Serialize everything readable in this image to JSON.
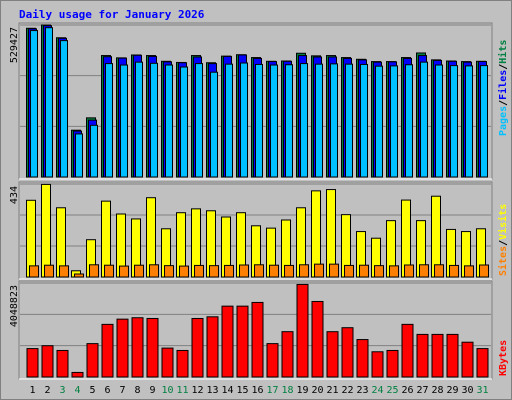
{
  "title": "Daily usage for January 2026",
  "colors": {
    "background": "#c0c0c0",
    "plot_bg": "#c0c0c0",
    "title_text": "#0000ff",
    "hits": "#008040",
    "files": "#0000ff",
    "pages": "#00c0ff",
    "visits": "#ffff00",
    "sites": "#ff8000",
    "kbytes": "#ff0000",
    "weekend_day": "#008040",
    "weekday": "#000000",
    "gridline": "#808080",
    "axis_light": "#ffffff",
    "axis_dark": "#808080",
    "bar_outline": "#000000"
  },
  "chart_data": [
    {
      "type": "bar",
      "panel": "hits-files-pages",
      "ymax_label": "529427",
      "ylim": [
        0,
        529427
      ],
      "grid": true,
      "legend_placement": "right-vertical",
      "legend": [
        "Pages",
        "/",
        "Files",
        "/",
        "Hits"
      ],
      "categories": [
        "1",
        "2",
        "3",
        "4",
        "5",
        "6",
        "7",
        "8",
        "9",
        "10",
        "11",
        "12",
        "13",
        "14",
        "15",
        "16",
        "17",
        "18",
        "19",
        "20",
        "21",
        "22",
        "23",
        "24",
        "25",
        "26",
        "27",
        "28",
        "29",
        "30",
        "31"
      ],
      "series": [
        {
          "name": "Hits",
          "values": [
            518000,
            529427,
            485000,
            163000,
            206000,
            423000,
            415000,
            425000,
            423000,
            403000,
            399000,
            423000,
            398000,
            421000,
            426000,
            416000,
            403000,
            404000,
            431000,
            422000,
            423000,
            416000,
            410000,
            402000,
            402000,
            416000,
            432000,
            408000,
            404000,
            402000,
            403000
          ]
        },
        {
          "name": "Files",
          "values": [
            516000,
            527000,
            483000,
            160000,
            198000,
            419000,
            414000,
            424000,
            420000,
            401000,
            398000,
            418000,
            395000,
            420000,
            425000,
            413000,
            402000,
            403000,
            423000,
            418000,
            418000,
            413000,
            408000,
            400000,
            401000,
            413000,
            423000,
            406000,
            403000,
            400000,
            402000
          ]
        },
        {
          "name": "Pages",
          "values": [
            510000,
            520000,
            475000,
            150000,
            180000,
            395000,
            390000,
            400000,
            396000,
            390000,
            383000,
            395000,
            365000,
            393000,
            397000,
            392000,
            390000,
            391000,
            395000,
            393000,
            394000,
            393000,
            392000,
            386000,
            387000,
            391000,
            400000,
            390000,
            388000,
            387000,
            388000
          ]
        }
      ]
    },
    {
      "type": "bar",
      "panel": "visits-sites",
      "ymax_label": "434",
      "ylim": [
        0,
        434
      ],
      "grid": true,
      "legend_placement": "right-vertical",
      "legend": [
        "Sites",
        "/",
        "Visits"
      ],
      "categories": [
        "1",
        "2",
        "3",
        "4",
        "5",
        "6",
        "7",
        "8",
        "9",
        "10",
        "11",
        "12",
        "13",
        "14",
        "15",
        "16",
        "17",
        "18",
        "19",
        "20",
        "21",
        "22",
        "23",
        "24",
        "25",
        "26",
        "27",
        "28",
        "29",
        "30",
        "31"
      ],
      "series": [
        {
          "name": "Visits",
          "values": [
            358,
            432,
            323,
            29,
            174,
            354,
            294,
            271,
            370,
            225,
            300,
            318,
            309,
            280,
            300,
            239,
            228,
            266,
            323,
            402,
            408,
            291,
            212,
            181,
            263,
            359,
            263,
            377,
            222,
            212,
            225
          ]
        },
        {
          "name": "Sites",
          "values": [
            52,
            55,
            52,
            14,
            57,
            55,
            51,
            55,
            57,
            53,
            51,
            54,
            53,
            54,
            56,
            57,
            55,
            54,
            57,
            60,
            60,
            54,
            55,
            53,
            52,
            56,
            57,
            57,
            54,
            52,
            56
          ]
        }
      ]
    },
    {
      "type": "bar",
      "panel": "kbytes",
      "ymax_label": "4048823",
      "ylim": [
        0,
        4048823
      ],
      "grid": true,
      "legend_placement": "right-vertical",
      "legend": [
        "KBytes"
      ],
      "categories": [
        "1",
        "2",
        "3",
        "4",
        "5",
        "6",
        "7",
        "8",
        "9",
        "10",
        "11",
        "12",
        "13",
        "14",
        "15",
        "16",
        "17",
        "18",
        "19",
        "20",
        "21",
        "22",
        "23",
        "24",
        "25",
        "26",
        "27",
        "28",
        "29",
        "30",
        "31"
      ],
      "series": [
        {
          "name": "KBytes",
          "values": [
            1224000,
            1348000,
            1143000,
            197000,
            1438000,
            2267000,
            2492000,
            2553000,
            2521000,
            1245000,
            1143000,
            2521000,
            2593000,
            3052000,
            3052000,
            3212000,
            1438000,
            1953000,
            3987000,
            3253000,
            1952000,
            2124000,
            1613000,
            1087000,
            1143000,
            2267000,
            1835000,
            1835000,
            1835000,
            1499000,
            1224000
          ]
        }
      ]
    }
  ],
  "x_axis": {
    "labels": [
      "1",
      "2",
      "3",
      "4",
      "5",
      "6",
      "7",
      "8",
      "9",
      "10",
      "11",
      "12",
      "13",
      "14",
      "15",
      "16",
      "17",
      "18",
      "19",
      "20",
      "21",
      "22",
      "23",
      "24",
      "25",
      "26",
      "27",
      "28",
      "29",
      "30",
      "31"
    ],
    "weekend": [
      false,
      false,
      true,
      true,
      false,
      false,
      false,
      false,
      false,
      true,
      true,
      false,
      false,
      false,
      false,
      false,
      true,
      true,
      false,
      false,
      false,
      false,
      false,
      true,
      true,
      false,
      false,
      false,
      false,
      false,
      true
    ]
  }
}
